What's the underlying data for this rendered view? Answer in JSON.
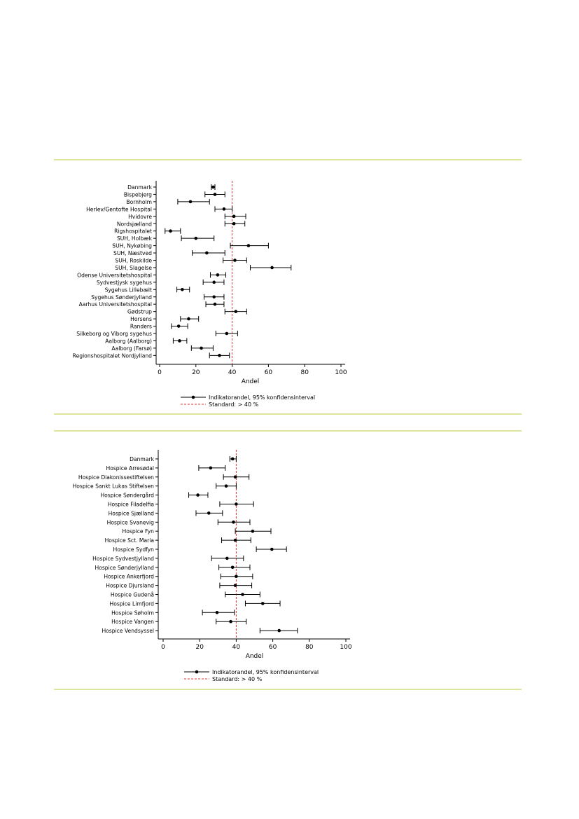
{
  "page": {
    "rule_color": "#dde59a"
  },
  "chart_data": [
    {
      "type": "forest",
      "xlabel": "Andel",
      "xlim": [
        0,
        100
      ],
      "xticks": [
        0,
        20,
        40,
        60,
        80,
        100
      ],
      "standard_value": 40,
      "point_color": "#000000",
      "standard_color": "#e03a3a",
      "legend": {
        "point_label": "Indikatorandel, 95% konfidensinterval",
        "standard_label": "Standard: > 40 %"
      },
      "categories": [
        "Danmark",
        "Bispebjerg",
        "Bornholm",
        "Herlev/Gentofte Hospital",
        "Hvidovre",
        "Nordsjælland",
        "Rigshospitalet",
        "SUH, Holbæk",
        "SUH, Nykøbing",
        "SUH, Næstved",
        "SUH, Roskilde",
        "SUH, Slagelse",
        "Odense Universitetshospital",
        "Sydvestjysk sygehus",
        "Sygehus Lillebælt",
        "Sygehus Sønderjylland",
        "Aarhus Universitetshospital",
        "Gødstrup",
        "Horsens",
        "Randers",
        "Silkeborg og Viborg sygehus",
        "Aalborg (Aalborg)",
        "Aalborg (Farsø)",
        "Regionshospitalet Nordjylland"
      ],
      "values": [
        29.5,
        30.5,
        17,
        35.5,
        41,
        41,
        6,
        20,
        49,
        26,
        41.5,
        62,
        32,
        30,
        12.5,
        30,
        30.5,
        42,
        16,
        10.5,
        37,
        11,
        23,
        33
      ],
      "ci_low": [
        28.5,
        25,
        10,
        30.5,
        36,
        36,
        3,
        12,
        39,
        18,
        35,
        50,
        28,
        24,
        9.5,
        24.5,
        25.5,
        36,
        11.5,
        6.5,
        31,
        7.5,
        17.5,
        27.5
      ],
      "ci_high": [
        30.5,
        36,
        27.5,
        40,
        47.5,
        47,
        11.5,
        30,
        60,
        36,
        48,
        72.5,
        36.5,
        35.5,
        16.5,
        35.5,
        35.5,
        48,
        21.5,
        15.5,
        43,
        15,
        29.5,
        38.5
      ]
    },
    {
      "type": "forest",
      "xlabel": "Andel",
      "xlim": [
        0,
        100
      ],
      "xticks": [
        0,
        20,
        40,
        60,
        80,
        100
      ],
      "standard_value": 40,
      "point_color": "#000000",
      "standard_color": "#e03a3a",
      "legend": {
        "point_label": "Indikatorandel, 95% konfidensinterval",
        "standard_label": "Standard: > 40 %"
      },
      "categories": [
        "Danmark",
        "Hospice Arresødal",
        "Hospice Diakonissestiftelsen",
        "Hospice Sankt Lukas Stiftelsen",
        "Hospice Søndergård",
        "Hospice Filadelfia",
        "Hospice Sjælland",
        "Hospice Svanevig",
        "Hospice Fyn",
        "Hospice Sct. Maria",
        "Hospice Sydfyn",
        "Hospice Sydvestjylland",
        "Hospice Sønderjylland",
        "Hospice Ankerfjord",
        "Hospice Djursland",
        "Hospice Gudenå",
        "Hospice Limfjord",
        "Hospice Søholm",
        "Hospice Vangen",
        "Hospice Vendsyssel"
      ],
      "values": [
        38,
        26,
        39.5,
        34.5,
        19,
        40,
        25,
        38.5,
        49,
        39.5,
        59.5,
        35,
        38,
        40,
        39.5,
        43.5,
        54.5,
        29.5,
        37,
        63.5
      ],
      "ci_low": [
        36.5,
        19.5,
        33,
        29,
        14,
        31,
        18,
        30,
        39.5,
        32,
        51,
        26.5,
        30.5,
        31.5,
        31,
        34,
        45,
        21.5,
        29,
        53
      ],
      "ci_high": [
        40,
        34,
        47,
        40,
        24.5,
        49.5,
        32.5,
        47.5,
        59,
        48,
        67.5,
        44,
        47.5,
        49,
        48.5,
        53,
        64,
        39,
        45.5,
        73.5
      ]
    }
  ]
}
